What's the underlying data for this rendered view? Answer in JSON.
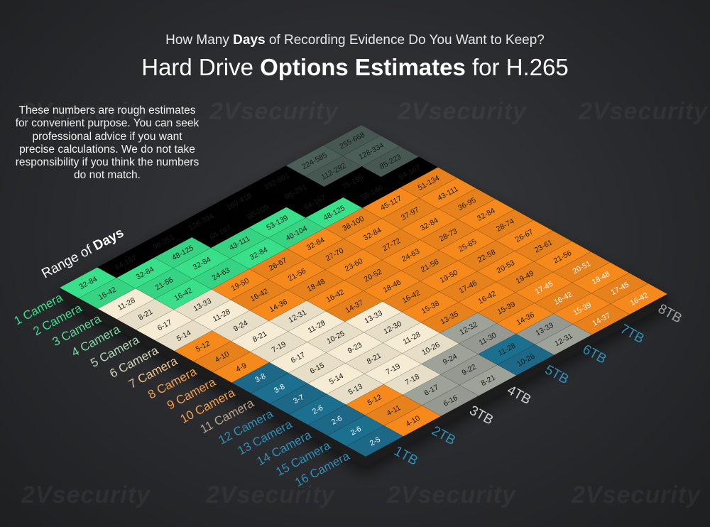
{
  "subtitle": {
    "pre": "How Many ",
    "bold": "Days",
    "post": " of Recording Evidence Do You Want to Keep?"
  },
  "title": {
    "pre": "Hard Drive ",
    "bold": "Options Estimates",
    "post": " for H.265"
  },
  "note": "These numbers are rough estimates for convenient purpose. You can seek professional advice if you want precise calculations. We do not take responsibility if you think the numbers do not match.",
  "watermark": "2Vsecurity",
  "axis_label": {
    "pre": "Range of ",
    "bold": "Days"
  },
  "colors": {
    "green": "#39e08a",
    "cream": "#f6ecd4",
    "orange": "#f6891e",
    "teal": "#1f6f8f",
    "gray": "#9ea39a",
    "darkgray": "#4b5f58"
  },
  "chart_data": {
    "type": "heatmap",
    "rows": [
      "1 Camera",
      "2 Camera",
      "3 Camera",
      "4 Camera",
      "5 Camera",
      "6 Camera",
      "7 Camera",
      "8 Camera",
      "9 Camera",
      "10 Camera",
      "11 Camera",
      "12 Camera",
      "13 Camera",
      "14 Camera",
      "15 Camera",
      "16 Camera"
    ],
    "columns": [
      "1TB",
      "2TB",
      "3TB",
      "4TB",
      "5TB",
      "6TB",
      "7TB",
      "8TB"
    ],
    "cells": [
      [
        "32-84",
        "64-167",
        "96-251",
        "128-334",
        "160-418",
        "192-501",
        "224-585",
        "255-668"
      ],
      [
        "16-42",
        "32-84",
        "48-125",
        "64-167",
        "80-209",
        "96-251",
        "112-292",
        "128-334"
      ],
      [
        "11-28",
        "21-56",
        "32-84",
        "43-111",
        "53-139",
        "64-167",
        "75-195",
        "85-223"
      ],
      [
        "8-21",
        "16-42",
        "24-63",
        "32-84",
        "40-104",
        "48-125",
        "56-146",
        "64-167"
      ],
      [
        "6-17",
        "13-33",
        "19-50",
        "26-67",
        "32-84",
        "38-100",
        "45-117",
        "51-134"
      ],
      [
        "5-14",
        "11-28",
        "16-42",
        "21-56",
        "27-70",
        "32-84",
        "37-97",
        "43-111"
      ],
      [
        "5-12",
        "9-24",
        "14-36",
        "18-48",
        "23-60",
        "27-72",
        "32-84",
        "36-95"
      ],
      [
        "4-10",
        "8-21",
        "12-31",
        "16-42",
        "20-52",
        "24-63",
        "28-73",
        "32-84"
      ],
      [
        "4-9",
        "7-19",
        "11-28",
        "14-37",
        "18-46",
        "21-56",
        "25-65",
        "28-74"
      ],
      [
        "3-8",
        "6-17",
        "10-25",
        "13-33",
        "16-42",
        "19-50",
        "22-58",
        "26-67"
      ],
      [
        "3-8",
        "6-15",
        "9-23",
        "12-30",
        "15-38",
        "17-46",
        "20-53",
        "23-61"
      ],
      [
        "3-7",
        "5-14",
        "8-21",
        "11-28",
        "13-35",
        "16-42",
        "19-49",
        "21-56"
      ],
      [
        "2-6",
        "5-13",
        "7-19",
        "10-26",
        "12-32",
        "15-39",
        "17-45",
        "20-51"
      ],
      [
        "2-6",
        "5-12",
        "7-18",
        "9-24",
        "11-30",
        "14-36",
        "16-42",
        "18-48"
      ],
      [
        "2-6",
        "4-11",
        "6-17",
        "9-22",
        "11-28",
        "13-33",
        "15-39",
        "17-45"
      ],
      [
        "2-5",
        "4-10",
        "6-16",
        "8-21",
        "10-26",
        "12-31",
        "14-37",
        "16-42"
      ]
    ]
  }
}
